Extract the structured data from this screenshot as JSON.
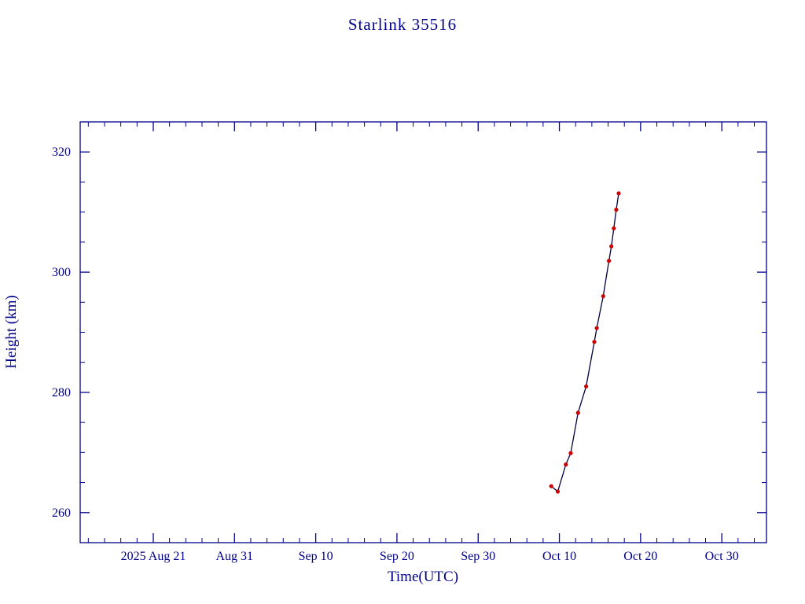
{
  "page": {
    "background": "#ffffff"
  },
  "chart_data": {
    "type": "line",
    "title": "Starlink 35516",
    "xlabel": "Time(UTC)",
    "ylabel": "Height (km)",
    "legend": "none",
    "grid": "off",
    "colors": {
      "axis": "#00008b",
      "line": "#000040",
      "marker": "#cc0000"
    },
    "x_axis": {
      "unit": "days since 2025 Aug 12",
      "min": 0,
      "max": 84.5,
      "minor_step": 2,
      "ticks": [
        {
          "day": 9,
          "label": "2025 Aug 21"
        },
        {
          "day": 19,
          "label": "Aug 31"
        },
        {
          "day": 29,
          "label": "Sep 10"
        },
        {
          "day": 39,
          "label": "Sep 20"
        },
        {
          "day": 49,
          "label": "Sep 30"
        },
        {
          "day": 59,
          "label": "Oct 10"
        },
        {
          "day": 69,
          "label": "Oct 20"
        },
        {
          "day": 79,
          "label": "Oct 30"
        }
      ]
    },
    "y_axis": {
      "min": 255,
      "max": 325,
      "minor_step": 5,
      "ticks": [
        260,
        280,
        300,
        320
      ]
    },
    "series": [
      {
        "name": "height",
        "marker": "dot",
        "points": [
          {
            "x": 58.0,
            "date": "2025 Oct 9.0",
            "y": 264.4
          },
          {
            "x": 58.8,
            "date": "2025 Oct 9.8",
            "y": 263.5
          },
          {
            "x": 59.8,
            "date": "2025 Oct 10.8",
            "y": 268.0
          },
          {
            "x": 60.4,
            "date": "2025 Oct 11.4",
            "y": 269.9
          },
          {
            "x": 61.3,
            "date": "2025 Oct 12.3",
            "y": 276.6
          },
          {
            "x": 62.3,
            "date": "2025 Oct 13.3",
            "y": 281.0
          },
          {
            "x": 63.3,
            "date": "2025 Oct 14.3",
            "y": 288.4
          },
          {
            "x": 63.6,
            "date": "2025 Oct 14.6",
            "y": 290.7
          },
          {
            "x": 64.4,
            "date": "2025 Oct 15.4",
            "y": 296.0
          },
          {
            "x": 65.1,
            "date": "2025 Oct 16.1",
            "y": 301.9
          },
          {
            "x": 65.4,
            "date": "2025 Oct 16.4",
            "y": 304.3
          },
          {
            "x": 65.7,
            "date": "2025 Oct 16.7",
            "y": 307.3
          },
          {
            "x": 66.0,
            "date": "2025 Oct 17.0",
            "y": 310.4
          },
          {
            "x": 66.3,
            "date": "2025 Oct 17.3",
            "y": 313.1
          }
        ]
      }
    ]
  }
}
